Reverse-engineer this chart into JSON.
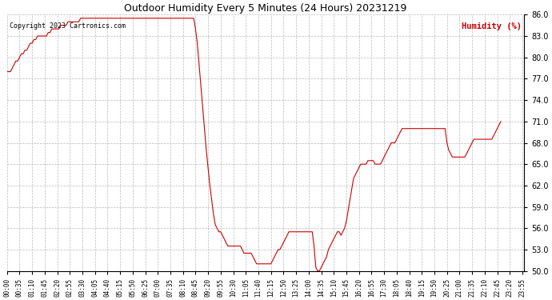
{
  "title": "Outdoor Humidity Every 5 Minutes (24 Hours) 20231219",
  "copyright_text": "Copyright 2023 Cartronics.com",
  "legend_text": "Humidity (%)",
  "background_color": "#ffffff",
  "line_color": "#cc0000",
  "grid_color": "#aaaaaa",
  "ylim": [
    50.0,
    86.0
  ],
  "yticks": [
    50.0,
    53.0,
    56.0,
    59.0,
    62.0,
    65.0,
    68.0,
    71.0,
    74.0,
    77.0,
    80.0,
    83.0,
    86.0
  ],
  "tick_step_min": 35,
  "humidity_data": [
    78.0,
    78.0,
    78.0,
    78.5,
    79.0,
    79.5,
    79.5,
    80.0,
    80.5,
    80.5,
    81.0,
    81.0,
    81.5,
    82.0,
    82.0,
    82.5,
    82.5,
    83.0,
    83.0,
    83.0,
    83.0,
    83.0,
    83.0,
    83.5,
    83.5,
    84.0,
    84.0,
    84.0,
    84.0,
    84.0,
    84.5,
    84.5,
    84.5,
    84.5,
    85.0,
    85.0,
    85.0,
    85.0,
    85.0,
    85.0,
    85.0,
    85.5,
    85.5,
    85.5,
    85.5,
    85.5,
    85.5,
    85.5,
    85.5,
    85.5,
    85.5,
    85.5,
    85.5,
    85.5,
    85.5,
    85.5,
    85.5,
    85.5,
    85.5,
    85.5,
    85.5,
    85.5,
    85.5,
    85.5,
    85.5,
    85.5,
    85.5,
    85.5,
    85.5,
    85.5,
    85.5,
    85.5,
    85.5,
    85.5,
    85.5,
    85.5,
    85.5,
    85.5,
    85.5,
    85.5,
    85.5,
    85.5,
    85.5,
    85.5,
    85.5,
    85.5,
    85.5,
    85.5,
    85.5,
    85.5,
    85.5,
    85.5,
    85.5,
    85.5,
    85.5,
    85.5,
    85.5,
    85.5,
    85.5,
    85.5,
    85.5,
    85.5,
    85.5,
    85.5,
    85.5,
    84.0,
    82.0,
    79.0,
    76.0,
    73.0,
    70.0,
    67.0,
    64.5,
    62.0,
    60.0,
    58.0,
    56.5,
    56.0,
    55.5,
    55.5,
    55.0,
    54.5,
    54.0,
    53.5,
    53.5,
    53.5,
    53.5,
    53.5,
    53.5,
    53.5,
    53.5,
    53.0,
    52.5,
    52.5,
    52.5,
    52.5,
    52.5,
    52.0,
    51.5,
    51.0,
    51.0,
    51.0,
    51.0,
    51.0,
    51.0,
    51.0,
    51.0,
    51.0,
    51.5,
    52.0,
    52.5,
    53.0,
    53.0,
    53.5,
    54.0,
    54.5,
    55.0,
    55.5,
    55.5,
    55.5,
    55.5,
    55.5,
    55.5,
    55.5,
    55.5,
    55.5,
    55.5,
    55.5,
    55.5,
    55.5,
    55.5,
    53.5,
    50.5,
    50.0,
    50.0,
    50.5,
    51.0,
    51.5,
    52.0,
    53.0,
    53.5,
    54.0,
    54.5,
    55.0,
    55.5,
    55.5,
    55.0,
    55.5,
    56.0,
    57.0,
    58.5,
    60.0,
    61.5,
    63.0,
    63.5,
    64.0,
    64.5,
    65.0,
    65.0,
    65.0,
    65.0,
    65.5,
    65.5,
    65.5,
    65.5,
    65.0,
    65.0,
    65.0,
    65.0,
    65.5,
    66.0,
    66.5,
    67.0,
    67.5,
    68.0,
    68.0,
    68.0,
    68.5,
    69.0,
    69.5,
    70.0,
    70.0,
    70.0,
    70.0,
    70.0,
    70.0,
    70.0,
    70.0,
    70.0,
    70.0,
    70.0,
    70.0,
    70.0,
    70.0,
    70.0,
    70.0,
    70.0,
    70.0,
    70.0,
    70.0,
    70.0,
    70.0,
    70.0,
    70.0,
    70.0,
    68.0,
    67.0,
    66.5,
    66.0,
    66.0,
    66.0,
    66.0,
    66.0,
    66.0,
    66.0,
    66.0,
    66.5,
    67.0,
    67.5,
    68.0,
    68.5,
    68.5,
    68.5,
    68.5,
    68.5,
    68.5,
    68.5,
    68.5,
    68.5,
    68.5,
    68.5,
    69.0,
    69.5,
    70.0,
    70.5,
    71.0
  ]
}
